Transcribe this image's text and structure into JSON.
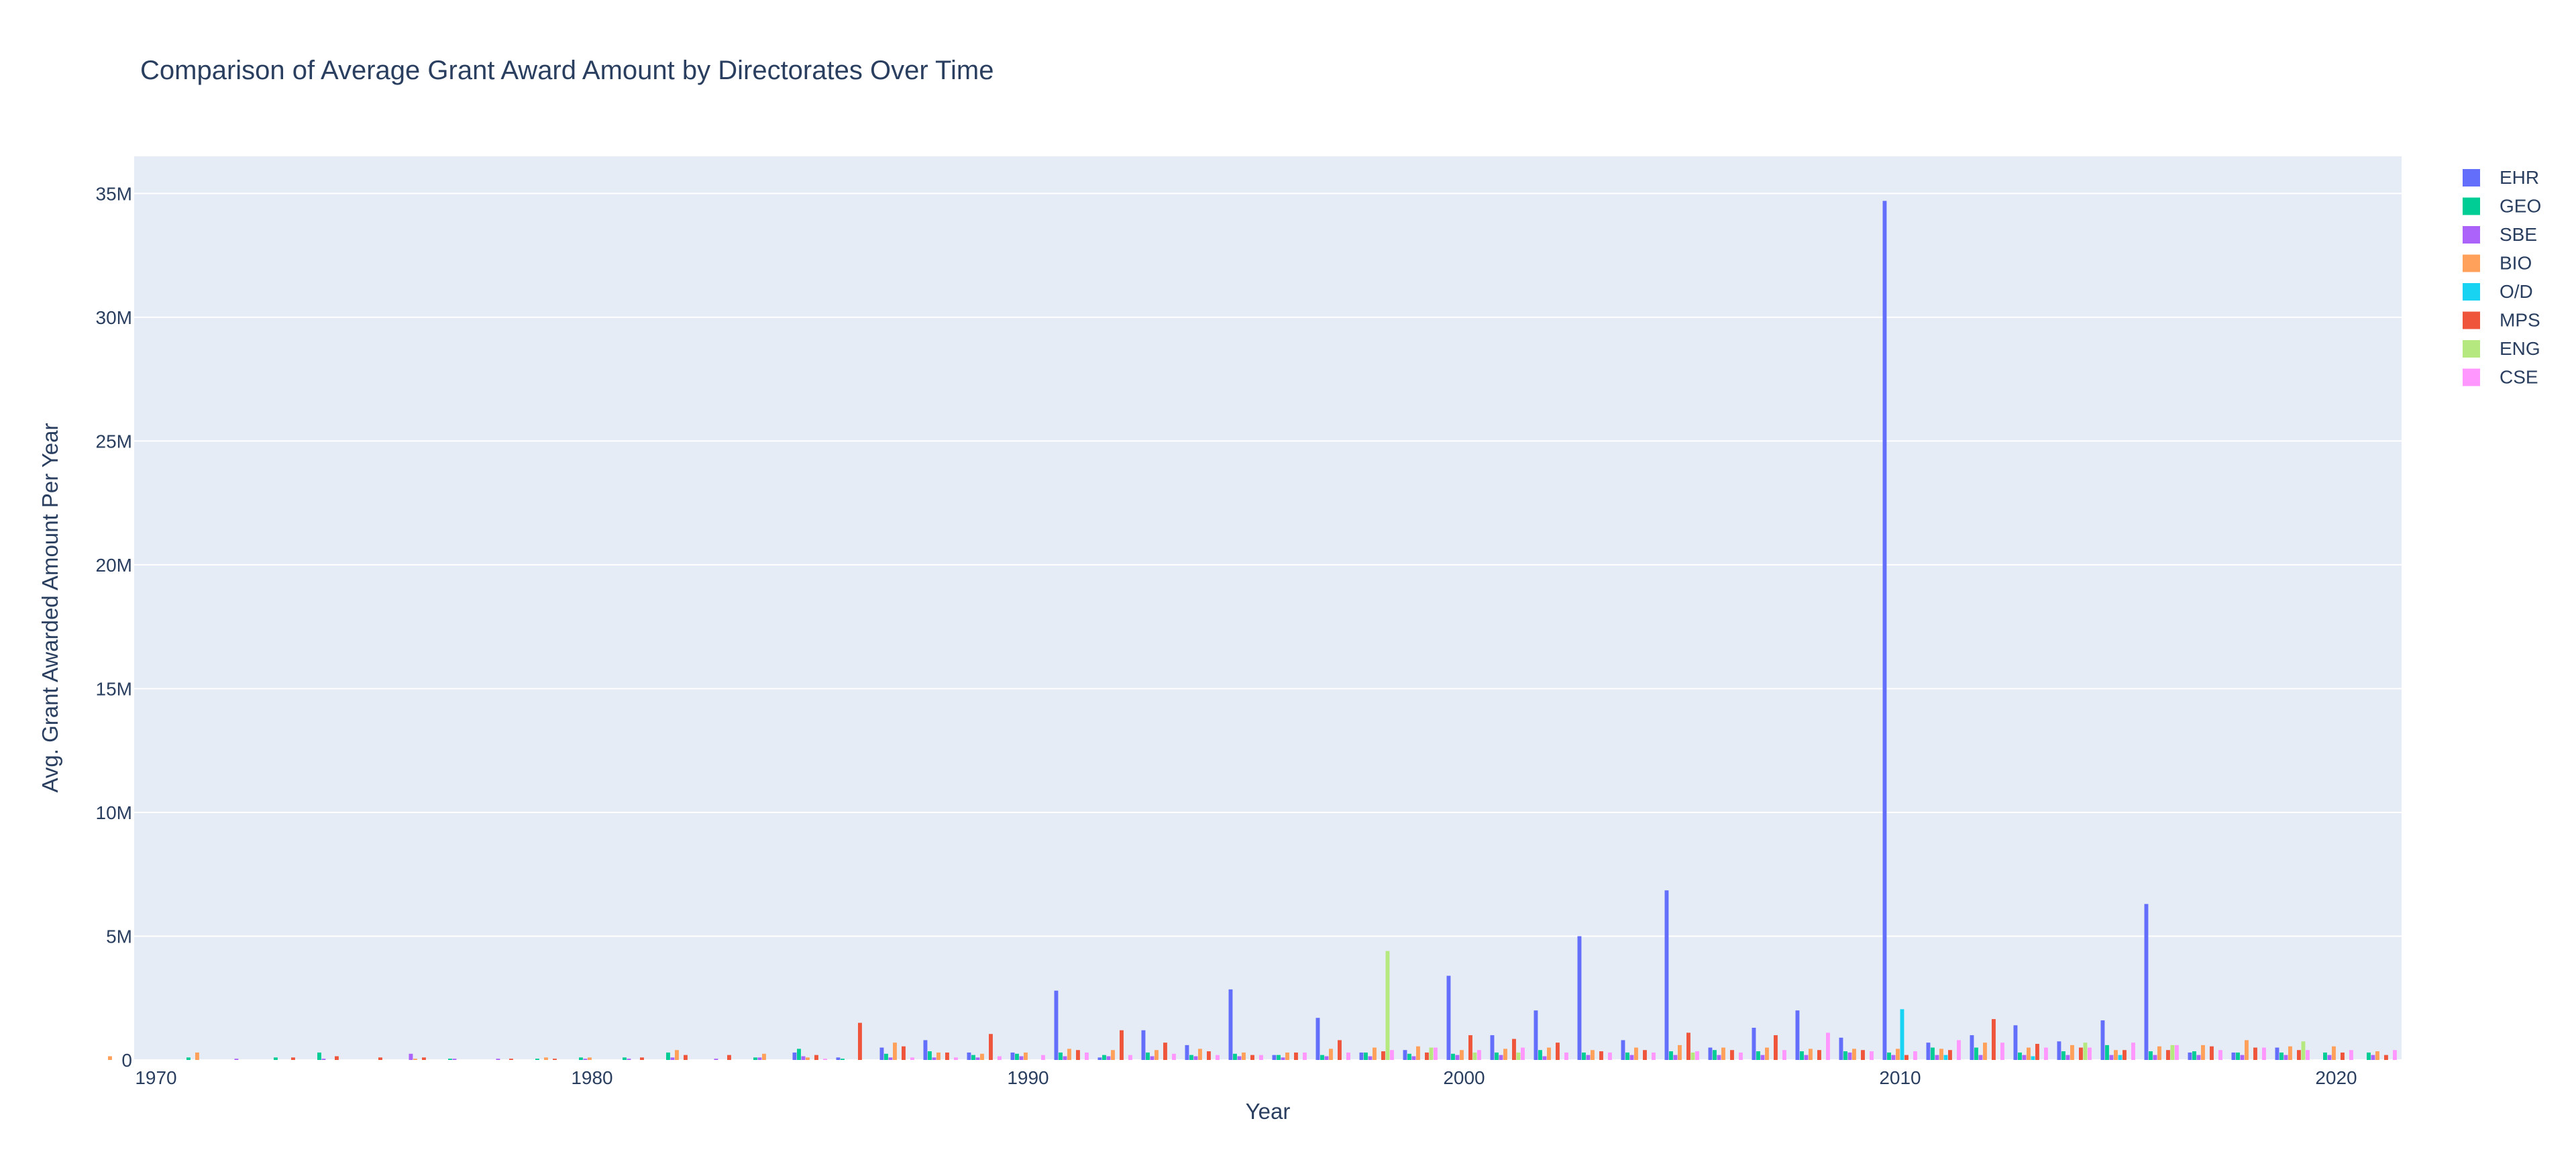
{
  "chart_data": {
    "type": "bar",
    "title": "Comparison of Average Grant Award Amount by Directorates Over Time",
    "xlabel": "Year",
    "ylabel": "Avg. Grant Awarded Amount Per Year",
    "xlim": [
      1969.5,
      2021.5
    ],
    "ylim": [
      0,
      36.5
    ],
    "x_ticks": [
      1970,
      1980,
      1990,
      2000,
      2010,
      2020
    ],
    "y_ticks": [
      {
        "value": 0,
        "label": "0"
      },
      {
        "value": 5,
        "label": "5M"
      },
      {
        "value": 10,
        "label": "10M"
      },
      {
        "value": 15,
        "label": "15M"
      },
      {
        "value": 20,
        "label": "20M"
      },
      {
        "value": 25,
        "label": "25M"
      },
      {
        "value": 30,
        "label": "30M"
      },
      {
        "value": 35,
        "label": "35M"
      }
    ],
    "value_unit": "millions",
    "grid": true,
    "legend_position": "top-right",
    "background": "#e5ecf6",
    "series": [
      {
        "name": "EHR",
        "color": "#636efa",
        "points": [
          [
            1985,
            0.3
          ],
          [
            1986,
            0.1
          ],
          [
            1987,
            0.5
          ],
          [
            1988,
            0.8
          ],
          [
            1989,
            0.3
          ],
          [
            1990,
            0.3
          ],
          [
            1991,
            2.8
          ],
          [
            1992,
            0.1
          ],
          [
            1993,
            1.2
          ],
          [
            1994,
            0.6
          ],
          [
            1995,
            2.85
          ],
          [
            1996,
            0.2
          ],
          [
            1997,
            1.7
          ],
          [
            1998,
            0.3
          ],
          [
            1999,
            0.4
          ],
          [
            2000,
            3.4
          ],
          [
            2001,
            1.0
          ],
          [
            2002,
            2.0
          ],
          [
            2003,
            5.0
          ],
          [
            2004,
            0.8
          ],
          [
            2005,
            6.85
          ],
          [
            2006,
            0.5
          ],
          [
            2007,
            1.3
          ],
          [
            2008,
            2.0
          ],
          [
            2009,
            0.9
          ],
          [
            2010,
            34.7
          ],
          [
            2011,
            0.7
          ],
          [
            2012,
            1.0
          ],
          [
            2013,
            1.4
          ],
          [
            2014,
            0.75
          ],
          [
            2015,
            1.6
          ],
          [
            2016,
            6.3
          ],
          [
            2017,
            0.3
          ],
          [
            2018,
            0.3
          ],
          [
            2019,
            0.5
          ]
        ]
      },
      {
        "name": "GEO",
        "color": "#00cc96",
        "points": [
          [
            1971,
            0.1
          ],
          [
            1973,
            0.1
          ],
          [
            1974,
            0.3
          ],
          [
            1977,
            0.05
          ],
          [
            1979,
            0.05
          ],
          [
            1980,
            0.1
          ],
          [
            1981,
            0.1
          ],
          [
            1982,
            0.3
          ],
          [
            1984,
            0.1
          ],
          [
            1985,
            0.45
          ],
          [
            1986,
            0.05
          ],
          [
            1987,
            0.25
          ],
          [
            1988,
            0.35
          ],
          [
            1989,
            0.2
          ],
          [
            1990,
            0.25
          ],
          [
            1991,
            0.3
          ],
          [
            1992,
            0.2
          ],
          [
            1993,
            0.3
          ],
          [
            1994,
            0.2
          ],
          [
            1995,
            0.25
          ],
          [
            1996,
            0.2
          ],
          [
            1997,
            0.2
          ],
          [
            1998,
            0.3
          ],
          [
            1999,
            0.25
          ],
          [
            2000,
            0.25
          ],
          [
            2001,
            0.3
          ],
          [
            2002,
            0.4
          ],
          [
            2003,
            0.3
          ],
          [
            2004,
            0.3
          ],
          [
            2005,
            0.35
          ],
          [
            2006,
            0.4
          ],
          [
            2007,
            0.35
          ],
          [
            2008,
            0.35
          ],
          [
            2009,
            0.35
          ],
          [
            2010,
            0.3
          ],
          [
            2011,
            0.5
          ],
          [
            2012,
            0.5
          ],
          [
            2013,
            0.3
          ],
          [
            2014,
            0.35
          ],
          [
            2015,
            0.6
          ],
          [
            2016,
            0.35
          ],
          [
            2017,
            0.35
          ],
          [
            2018,
            0.3
          ],
          [
            2019,
            0.3
          ],
          [
            2020,
            0.3
          ],
          [
            2021,
            0.3
          ]
        ]
      },
      {
        "name": "SBE",
        "color": "#ab63fa",
        "points": [
          [
            1972,
            0.05
          ],
          [
            1974,
            0.05
          ],
          [
            1976,
            0.25
          ],
          [
            1977,
            0.05
          ],
          [
            1978,
            0.05
          ],
          [
            1980,
            0.05
          ],
          [
            1981,
            0.05
          ],
          [
            1982,
            0.1
          ],
          [
            1983,
            0.05
          ],
          [
            1984,
            0.1
          ],
          [
            1985,
            0.15
          ],
          [
            1987,
            0.1
          ],
          [
            1988,
            0.1
          ],
          [
            1989,
            0.1
          ],
          [
            1990,
            0.15
          ],
          [
            1991,
            0.15
          ],
          [
            1992,
            0.15
          ],
          [
            1993,
            0.15
          ],
          [
            1994,
            0.15
          ],
          [
            1995,
            0.15
          ],
          [
            1996,
            0.1
          ],
          [
            1997,
            0.15
          ],
          [
            1998,
            0.15
          ],
          [
            1999,
            0.15
          ],
          [
            2000,
            0.2
          ],
          [
            2001,
            0.2
          ],
          [
            2002,
            0.15
          ],
          [
            2003,
            0.2
          ],
          [
            2004,
            0.2
          ],
          [
            2005,
            0.2
          ],
          [
            2006,
            0.2
          ],
          [
            2007,
            0.2
          ],
          [
            2008,
            0.2
          ],
          [
            2009,
            0.3
          ],
          [
            2010,
            0.2
          ],
          [
            2011,
            0.2
          ],
          [
            2012,
            0.2
          ],
          [
            2013,
            0.2
          ],
          [
            2014,
            0.2
          ],
          [
            2015,
            0.2
          ],
          [
            2016,
            0.2
          ],
          [
            2017,
            0.2
          ],
          [
            2018,
            0.2
          ],
          [
            2019,
            0.2
          ],
          [
            2020,
            0.2
          ],
          [
            2021,
            0.2
          ]
        ]
      },
      {
        "name": "BIO",
        "color": "#ffa15a",
        "points": [
          [
            1969,
            0.15
          ],
          [
            1971,
            0.3
          ],
          [
            1976,
            0.05
          ],
          [
            1979,
            0.1
          ],
          [
            1980,
            0.1
          ],
          [
            1982,
            0.4
          ],
          [
            1984,
            0.25
          ],
          [
            1985,
            0.1
          ],
          [
            1987,
            0.7
          ],
          [
            1988,
            0.3
          ],
          [
            1989,
            0.25
          ],
          [
            1990,
            0.3
          ],
          [
            1991,
            0.45
          ],
          [
            1992,
            0.4
          ],
          [
            1993,
            0.4
          ],
          [
            1994,
            0.45
          ],
          [
            1995,
            0.3
          ],
          [
            1996,
            0.3
          ],
          [
            1997,
            0.45
          ],
          [
            1998,
            0.5
          ],
          [
            1999,
            0.55
          ],
          [
            2000,
            0.4
          ],
          [
            2001,
            0.45
          ],
          [
            2002,
            0.5
          ],
          [
            2003,
            0.4
          ],
          [
            2004,
            0.5
          ],
          [
            2005,
            0.6
          ],
          [
            2006,
            0.5
          ],
          [
            2007,
            0.5
          ],
          [
            2008,
            0.45
          ],
          [
            2009,
            0.45
          ],
          [
            2010,
            0.45
          ],
          [
            2011,
            0.45
          ],
          [
            2012,
            0.7
          ],
          [
            2013,
            0.5
          ],
          [
            2014,
            0.6
          ],
          [
            2015,
            0.4
          ],
          [
            2016,
            0.55
          ],
          [
            2017,
            0.6
          ],
          [
            2018,
            0.8
          ],
          [
            2019,
            0.55
          ],
          [
            2020,
            0.55
          ],
          [
            2021,
            0.35
          ]
        ]
      },
      {
        "name": "O/D",
        "color": "#19d3f3",
        "points": [
          [
            2010,
            2.05
          ],
          [
            2011,
            0.2
          ],
          [
            2013,
            0.15
          ],
          [
            2015,
            0.2
          ]
        ]
      },
      {
        "name": "MPS",
        "color": "#ef553b",
        "points": [
          [
            1973,
            0.1
          ],
          [
            1974,
            0.15
          ],
          [
            1975,
            0.1
          ],
          [
            1976,
            0.1
          ],
          [
            1978,
            0.05
          ],
          [
            1979,
            0.05
          ],
          [
            1981,
            0.1
          ],
          [
            1982,
            0.2
          ],
          [
            1983,
            0.2
          ],
          [
            1985,
            0.2
          ],
          [
            1986,
            1.5
          ],
          [
            1987,
            0.55
          ],
          [
            1988,
            0.3
          ],
          [
            1989,
            1.05
          ],
          [
            1991,
            0.4
          ],
          [
            1992,
            1.2
          ],
          [
            1993,
            0.7
          ],
          [
            1994,
            0.35
          ],
          [
            1995,
            0.2
          ],
          [
            1996,
            0.3
          ],
          [
            1997,
            0.8
          ],
          [
            1998,
            0.35
          ],
          [
            1999,
            0.3
          ],
          [
            2000,
            1.0
          ],
          [
            2001,
            0.85
          ],
          [
            2002,
            0.7
          ],
          [
            2003,
            0.35
          ],
          [
            2004,
            0.4
          ],
          [
            2005,
            1.1
          ],
          [
            2006,
            0.4
          ],
          [
            2007,
            1.0
          ],
          [
            2008,
            0.4
          ],
          [
            2009,
            0.4
          ],
          [
            2010,
            0.2
          ],
          [
            2011,
            0.4
          ],
          [
            2012,
            1.65
          ],
          [
            2013,
            0.65
          ],
          [
            2014,
            0.5
          ],
          [
            2015,
            0.4
          ],
          [
            2016,
            0.4
          ],
          [
            2017,
            0.55
          ],
          [
            2018,
            0.5
          ],
          [
            2019,
            0.4
          ],
          [
            2020,
            0.3
          ],
          [
            2021,
            0.2
          ]
        ]
      },
      {
        "name": "ENG",
        "color": "#b6e880",
        "points": [
          [
            1998,
            4.4
          ],
          [
            1999,
            0.5
          ],
          [
            2000,
            0.3
          ],
          [
            2001,
            0.3
          ],
          [
            2005,
            0.3
          ],
          [
            2014,
            0.7
          ],
          [
            2016,
            0.6
          ],
          [
            2019,
            0.75
          ]
        ]
      },
      {
        "name": "CSE",
        "color": "#ff97ff",
        "points": [
          [
            1985,
            0.05
          ],
          [
            1987,
            0.1
          ],
          [
            1988,
            0.1
          ],
          [
            1989,
            0.15
          ],
          [
            1990,
            0.2
          ],
          [
            1991,
            0.3
          ],
          [
            1992,
            0.2
          ],
          [
            1993,
            0.25
          ],
          [
            1994,
            0.2
          ],
          [
            1995,
            0.2
          ],
          [
            1996,
            0.3
          ],
          [
            1997,
            0.3
          ],
          [
            1998,
            0.4
          ],
          [
            1999,
            0.5
          ],
          [
            2000,
            0.4
          ],
          [
            2001,
            0.5
          ],
          [
            2002,
            0.3
          ],
          [
            2003,
            0.3
          ],
          [
            2004,
            0.3
          ],
          [
            2005,
            0.35
          ],
          [
            2006,
            0.3
          ],
          [
            2007,
            0.4
          ],
          [
            2008,
            1.1
          ],
          [
            2009,
            0.35
          ],
          [
            2010,
            0.35
          ],
          [
            2011,
            0.8
          ],
          [
            2012,
            0.7
          ],
          [
            2013,
            0.5
          ],
          [
            2014,
            0.5
          ],
          [
            2015,
            0.7
          ],
          [
            2016,
            0.6
          ],
          [
            2017,
            0.4
          ],
          [
            2018,
            0.5
          ],
          [
            2019,
            0.4
          ],
          [
            2020,
            0.4
          ],
          [
            2021,
            0.4
          ]
        ]
      }
    ]
  }
}
